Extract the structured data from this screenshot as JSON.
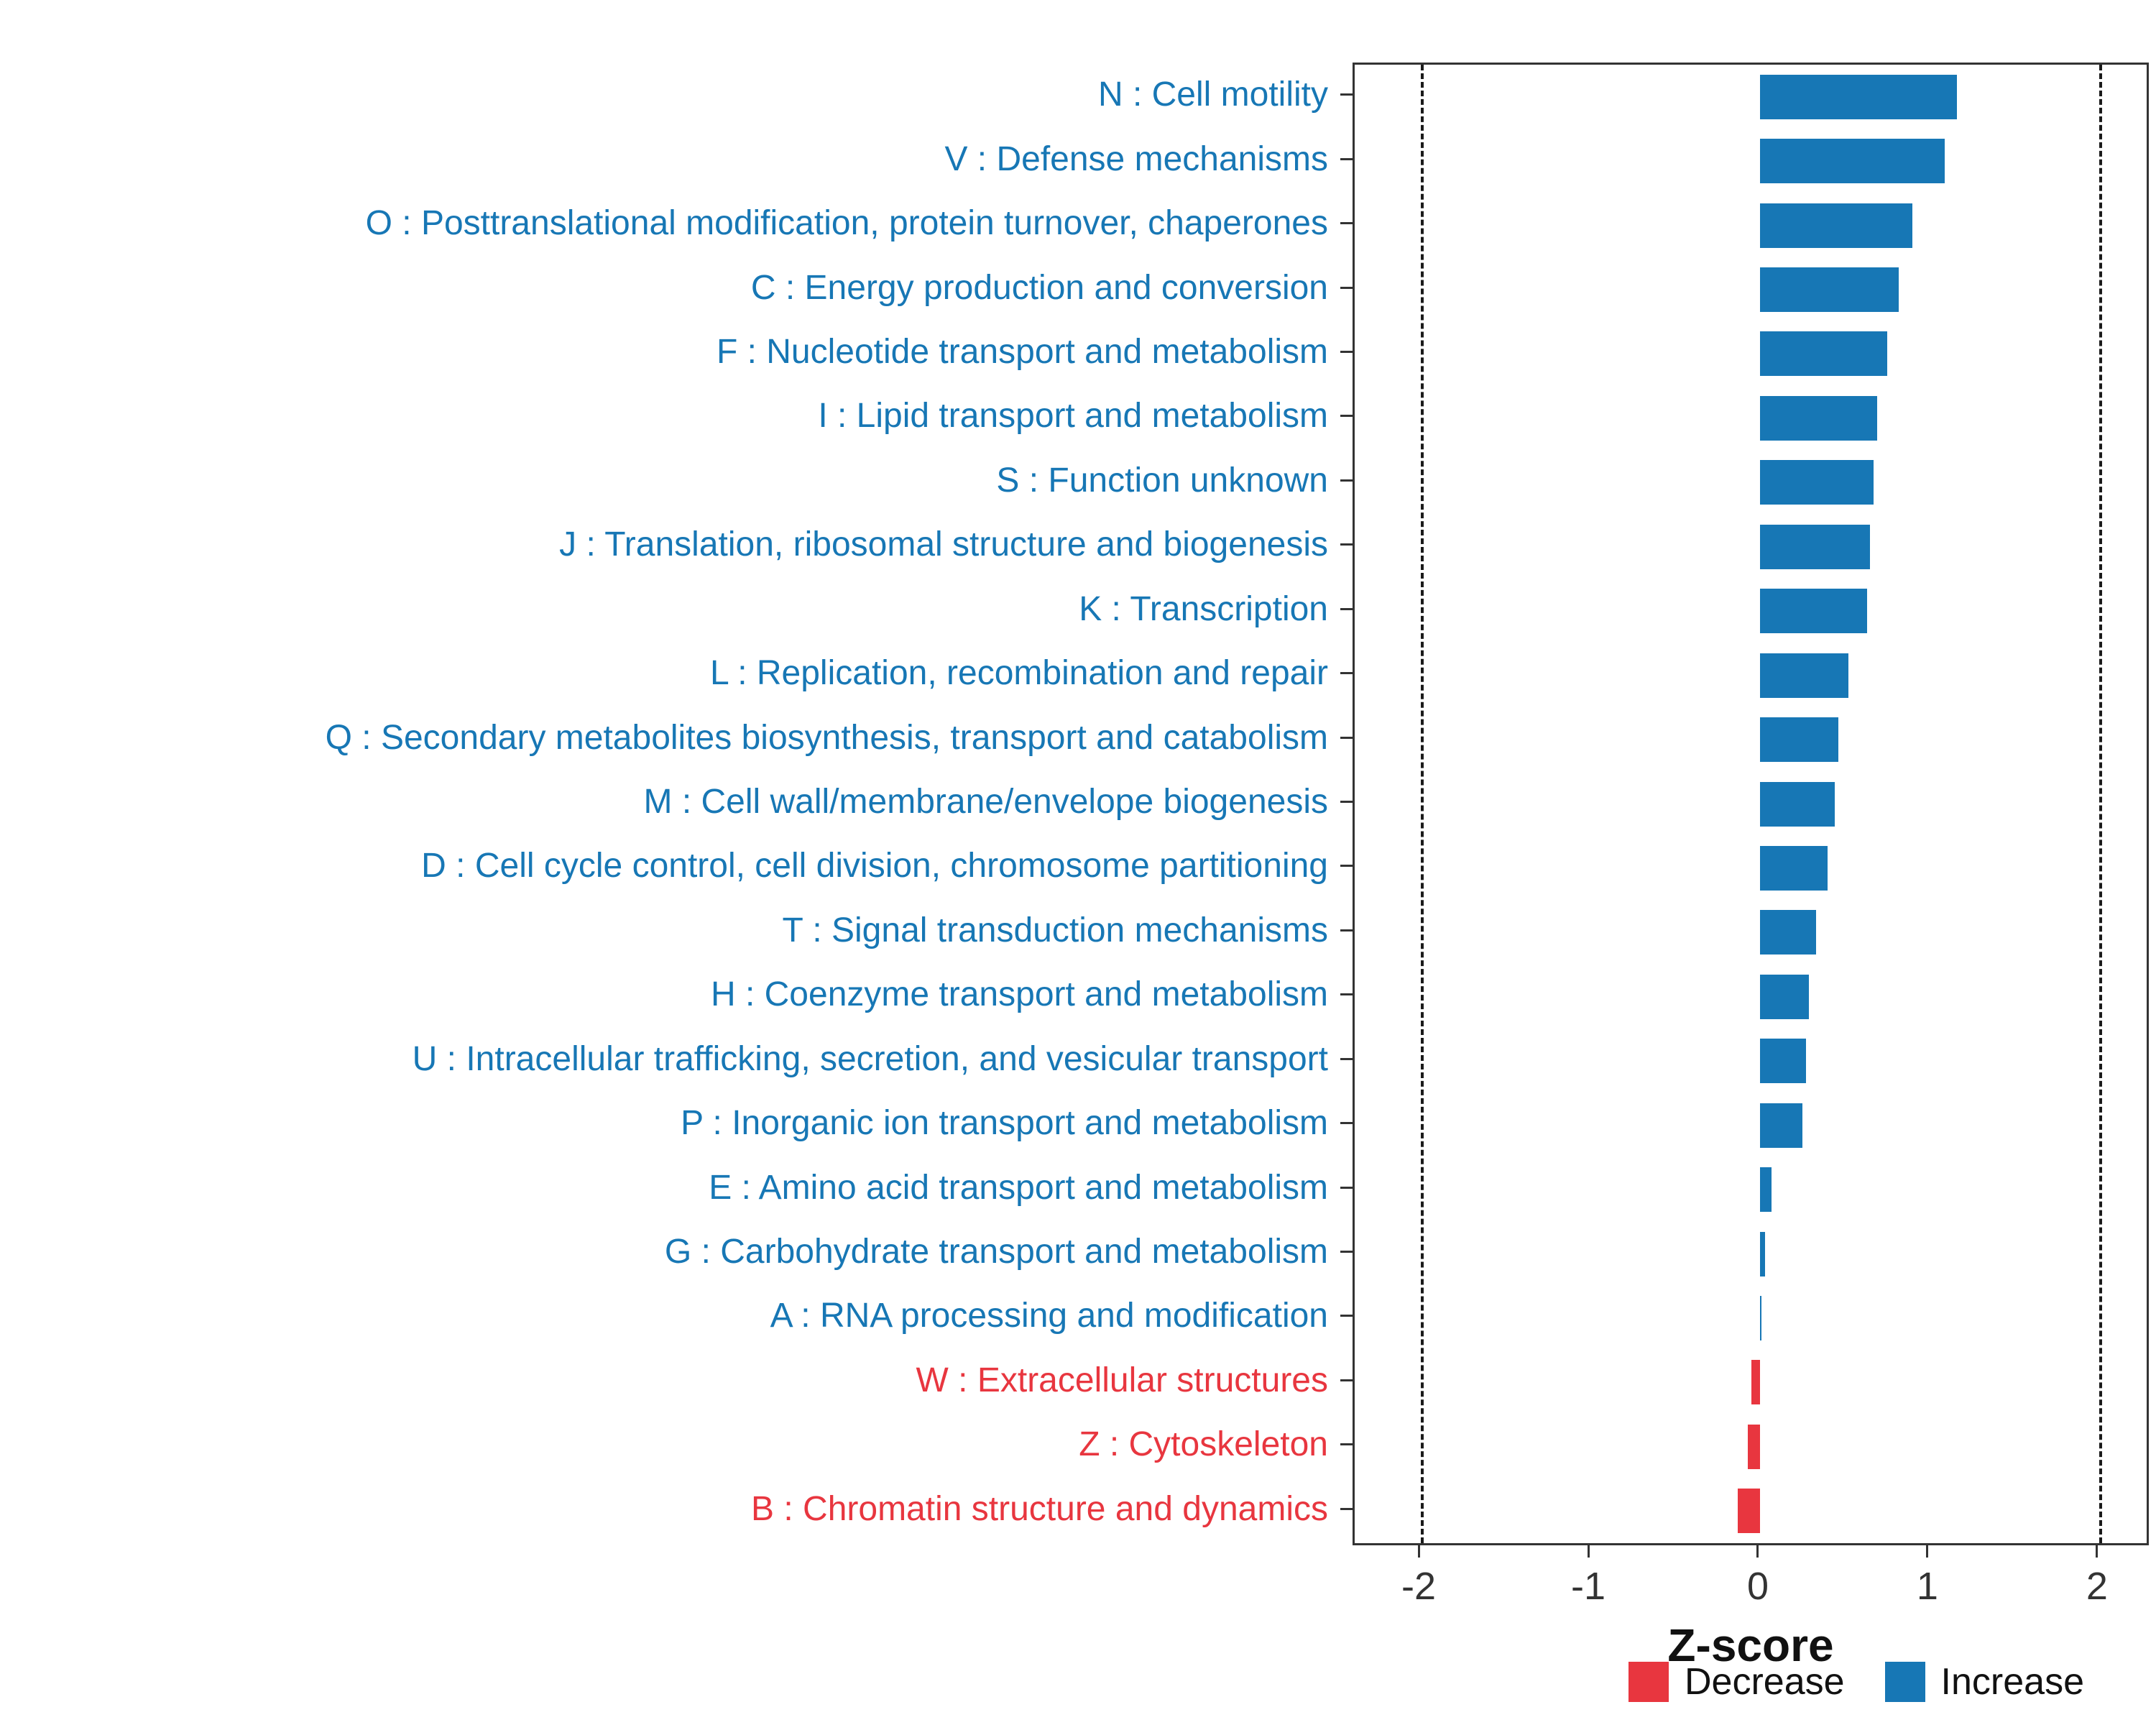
{
  "chart_data": {
    "type": "bar",
    "orientation": "horizontal",
    "title": "",
    "xlabel": "Z-score",
    "xlim": [
      -2.39,
      2.28
    ],
    "xticks": [
      -2,
      -1,
      0,
      1,
      2
    ],
    "ref_lines": [
      -2,
      2
    ],
    "grid": false,
    "legend_position": "bottom-right",
    "legend": [
      {
        "label": "Decrease",
        "color": "#E8363F"
      },
      {
        "label": "Increase",
        "color": "#1777B5"
      }
    ],
    "items": [
      {
        "label": "N : Cell motility",
        "value": 1.16,
        "direction": "Increase"
      },
      {
        "label": "V : Defense mechanisms",
        "value": 1.09,
        "direction": "Increase"
      },
      {
        "label": "O : Posttranslational modification, protein turnover, chaperones",
        "value": 0.9,
        "direction": "Increase"
      },
      {
        "label": "C : Energy production and conversion",
        "value": 0.82,
        "direction": "Increase"
      },
      {
        "label": "F : Nucleotide transport and metabolism",
        "value": 0.75,
        "direction": "Increase"
      },
      {
        "label": "I : Lipid transport and metabolism",
        "value": 0.69,
        "direction": "Increase"
      },
      {
        "label": "S : Function unknown",
        "value": 0.67,
        "direction": "Increase"
      },
      {
        "label": "J : Translation, ribosomal structure and biogenesis",
        "value": 0.65,
        "direction": "Increase"
      },
      {
        "label": "K : Transcription",
        "value": 0.63,
        "direction": "Increase"
      },
      {
        "label": "L : Replication, recombination and repair",
        "value": 0.52,
        "direction": "Increase"
      },
      {
        "label": "Q : Secondary metabolites biosynthesis, transport and catabolism",
        "value": 0.46,
        "direction": "Increase"
      },
      {
        "label": "M : Cell wall/membrane/envelope biogenesis",
        "value": 0.44,
        "direction": "Increase"
      },
      {
        "label": "D : Cell cycle control, cell division, chromosome partitioning",
        "value": 0.4,
        "direction": "Increase"
      },
      {
        "label": "T : Signal transduction mechanisms",
        "value": 0.33,
        "direction": "Increase"
      },
      {
        "label": "H : Coenzyme transport and metabolism",
        "value": 0.29,
        "direction": "Increase"
      },
      {
        "label": "U : Intracellular trafficking, secretion, and vesicular transport",
        "value": 0.27,
        "direction": "Increase"
      },
      {
        "label": "P : Inorganic ion transport and metabolism",
        "value": 0.25,
        "direction": "Increase"
      },
      {
        "label": "E : Amino acid transport and metabolism",
        "value": 0.07,
        "direction": "Increase"
      },
      {
        "label": "G : Carbohydrate transport and metabolism",
        "value": 0.03,
        "direction": "Increase"
      },
      {
        "label": "A : RNA processing and modification",
        "value": 0.01,
        "direction": "Increase"
      },
      {
        "label": "W : Extracellular structures",
        "value": -0.05,
        "direction": "Decrease"
      },
      {
        "label": "Z : Cytoskeleton",
        "value": -0.07,
        "direction": "Decrease"
      },
      {
        "label": "B : Chromatin structure and dynamics",
        "value": -0.13,
        "direction": "Decrease"
      }
    ]
  }
}
